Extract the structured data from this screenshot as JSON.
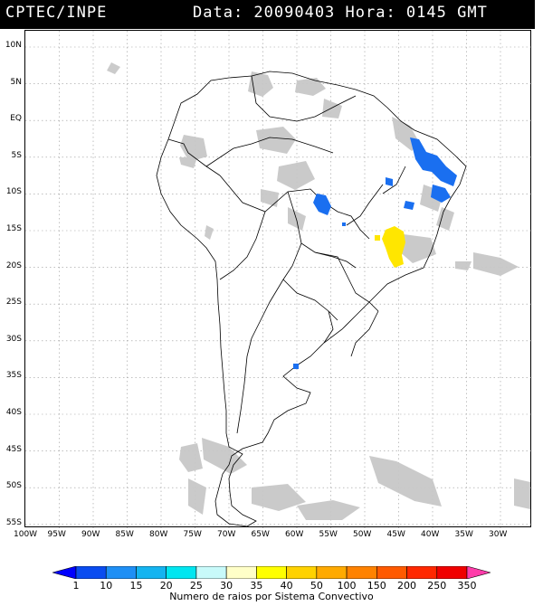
{
  "header": {
    "org": "CPTEC/INPE",
    "datetime": "Data: 20090403 Hora: 0145 GMT"
  },
  "axes": {
    "lat_labels": [
      "10N",
      "5N",
      "EQ",
      "5S",
      "10S",
      "15S",
      "20S",
      "25S",
      "30S",
      "35S",
      "40S",
      "45S",
      "50S",
      "55S"
    ],
    "lon_labels": [
      "100W",
      "95W",
      "90W",
      "85W",
      "80W",
      "75W",
      "70W",
      "65W",
      "60W",
      "55W",
      "50W",
      "45W",
      "40W",
      "35W",
      "30W"
    ]
  },
  "legend": {
    "values": [
      "1",
      "10",
      "15",
      "20",
      "25",
      "30",
      "35",
      "40",
      "50",
      "100",
      "150",
      "200",
      "250",
      "350"
    ],
    "colors": [
      "#0000ff",
      "#0a4cf0",
      "#1e8ff5",
      "#14b4f0",
      "#00e6f0",
      "#c8fafa",
      "#ffffc8",
      "#ffff00",
      "#ffd200",
      "#ffaa00",
      "#ff8200",
      "#ff5a00",
      "#ff2800",
      "#f00000",
      "#ff3caa"
    ],
    "caption": "Numero de raios por Sistema Convectivo"
  },
  "map_colors": {
    "cloud": "#c8c8c8",
    "blue": "#1a6ff0",
    "yellow": "#ffe600",
    "border": "#000000"
  }
}
